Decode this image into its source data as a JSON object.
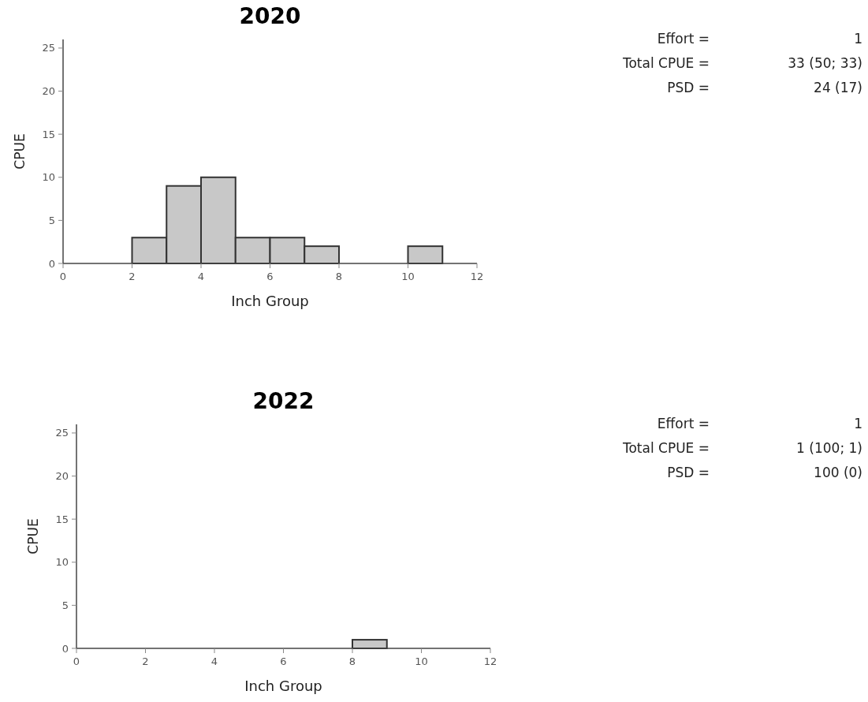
{
  "chart_data": [
    {
      "type": "histogram",
      "title": "2020",
      "xlabel": "Inch Group",
      "ylabel": "CPUE",
      "bins": [
        0,
        1,
        2,
        3,
        4,
        5,
        6,
        7,
        8,
        9,
        10,
        11,
        12
      ],
      "values": [
        0,
        0,
        3,
        9,
        10,
        3,
        3,
        2,
        0,
        0,
        2,
        0
      ],
      "color": "#c8c8c8",
      "xlim": [
        0,
        12
      ],
      "xticks": [
        0,
        2,
        4,
        6,
        8,
        10,
        12
      ],
      "ylim": [
        0,
        26
      ],
      "yticks": [
        0,
        5,
        10,
        15,
        20,
        25
      ]
    },
    {
      "type": "other",
      "annotations": [
        "Effort =",
        "1",
        "Total CPUE =",
        "33 (50; 33)",
        "PSD =",
        "24 (17)"
      ]
    },
    {
      "type": "histogram",
      "title": "2022",
      "xlabel": "Inch Group",
      "ylabel": "CPUE",
      "bins": [
        0,
        1,
        2,
        3,
        4,
        5,
        6,
        7,
        8,
        9,
        10,
        11,
        12
      ],
      "values": [
        0,
        0,
        0,
        0,
        0,
        0,
        0,
        0,
        1,
        0,
        0,
        0
      ],
      "color": "#c8c8c8",
      "xlim": [
        0,
        12
      ],
      "xticks": [
        0,
        2,
        4,
        6,
        8,
        10,
        12
      ],
      "ylim": [
        0,
        26
      ],
      "yticks": [
        0,
        5,
        10,
        15,
        20,
        25
      ]
    },
    {
      "type": "other",
      "annotations": [
        "Effort =",
        "1",
        "Total CPUE =",
        "1 (100; 1)",
        "PSD =",
        "100 (0)"
      ]
    }
  ]
}
